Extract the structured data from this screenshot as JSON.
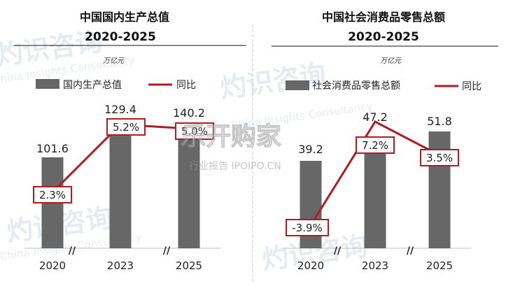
{
  "chart_data": [
    {
      "type": "bar",
      "title": "中国国内生产总值",
      "subtitle": "2020-2025",
      "unit": "万亿元",
      "categories": [
        "2020",
        "2023",
        "2025"
      ],
      "series": [
        {
          "name": "国内生产总值",
          "type": "bar",
          "values": [
            101.6,
            129.4,
            140.2
          ]
        },
        {
          "name": "同比",
          "type": "line",
          "values": [
            "2.3%",
            "5.2%",
            "5.0%"
          ],
          "numeric": [
            2.3,
            5.2,
            5.0
          ]
        }
      ],
      "axis_break_marks": [
        "//",
        "//"
      ],
      "legend_position": "top",
      "colors": {
        "bar": "#676767",
        "line": "#b01c22"
      }
    },
    {
      "type": "bar",
      "title": "中国社会消费品零售总额",
      "subtitle": "2020-2025",
      "unit": "万亿元",
      "categories": [
        "2020",
        "2023",
        "2025"
      ],
      "series": [
        {
          "name": "社会消费品零售总额",
          "type": "bar",
          "values": [
            39.2,
            47.2,
            51.8
          ]
        },
        {
          "name": "同比",
          "type": "line",
          "values": [
            "-3.9%",
            "7.2%",
            "3.5%"
          ],
          "numeric": [
            -3.9,
            7.2,
            3.5
          ]
        }
      ],
      "axis_break_marks": [
        "//",
        "//"
      ],
      "legend_position": "top",
      "colors": {
        "bar": "#676767",
        "line": "#b01c22"
      }
    }
  ],
  "watermark": {
    "brand": "灼识咨询",
    "brand_en": "China Insights Consultancy",
    "site_logo": "乐开购家",
    "site_sub": "行业报告 IPOIPO.CN"
  }
}
